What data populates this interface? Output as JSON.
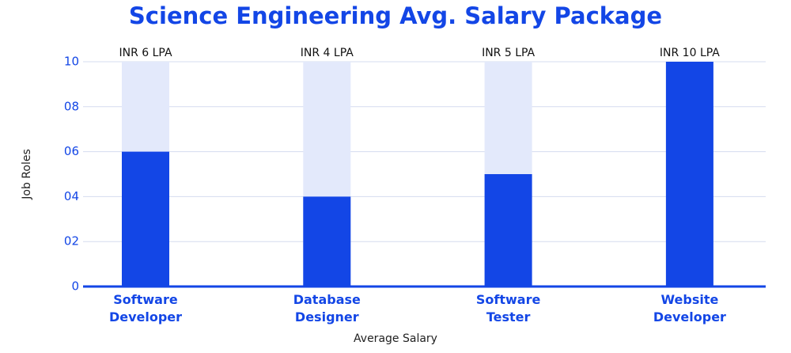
{
  "chart_data": {
    "type": "bar",
    "title": "Science Engineering Avg. Salary Package",
    "categories": [
      "Software Developer",
      "Database Designer",
      "Software Tester",
      "Website Developer"
    ],
    "values": [
      6,
      4,
      5,
      10
    ],
    "value_labels": [
      "INR 6 LPA",
      "INR 4 LPA",
      "INR 5 LPA",
      "INR 10 LPA"
    ],
    "color": "#1346e6",
    "x_label": "Average Salary",
    "y_label": "Job Roles",
    "ylim": [
      0,
      10
    ],
    "yticks": [
      0,
      {
        "value": 2,
        "label": "02"
      },
      {
        "value": 4,
        "label": "04"
      },
      {
        "value": 6,
        "label": "06"
      },
      {
        "value": 8,
        "label": "08"
      },
      10
    ],
    "grid": true
  }
}
